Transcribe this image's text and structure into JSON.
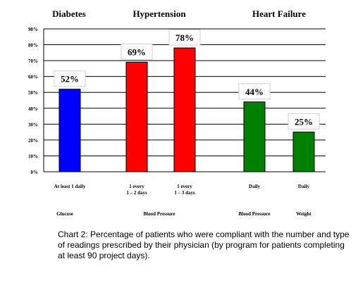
{
  "chart_data": {
    "type": "bar",
    "groups": [
      "Diabetes",
      "Hypertension",
      "Heart Failure"
    ],
    "yticks": [
      "0%",
      "10%",
      "20%",
      "30%",
      "40%",
      "50%",
      "60%",
      "70%",
      "80%",
      "90%"
    ],
    "ylim": [
      0,
      90
    ],
    "grid": true,
    "bars": [
      {
        "value": 52,
        "label": "52%",
        "category": [
          "At least 1 daily"
        ],
        "measure": "Glucose",
        "group": "Diabetes",
        "color": "#0000ff"
      },
      {
        "value": 69,
        "label": "69%",
        "category": [
          "1 every",
          "1 – 2 days"
        ],
        "measure": "Blood Pressure",
        "group": "Hypertension",
        "color": "#ff0000"
      },
      {
        "value": 78,
        "label": "78%",
        "category": [
          "1 every",
          "1 – 3 days"
        ],
        "measure": "Blood Pressure",
        "group": "Hypertension",
        "color": "#ff0000"
      },
      {
        "value": 44,
        "label": "44%",
        "category": [
          "Daily"
        ],
        "measure": "Blood Pressure",
        "group": "Heart Failure",
        "color": "#008000"
      },
      {
        "value": 25,
        "label": "25%",
        "category": [
          "Daily"
        ],
        "measure": "Weight",
        "group": "Heart Failure",
        "color": "#008000"
      }
    ],
    "measure_labels": [
      "Glucose",
      "Blood Pressure",
      "Blood Pressure",
      "Weight"
    ]
  },
  "caption": "Chart 2:  Percentage of patients who were compliant with the number and type of readings prescribed by their physician (by program for patients completing at least 90 project days)."
}
